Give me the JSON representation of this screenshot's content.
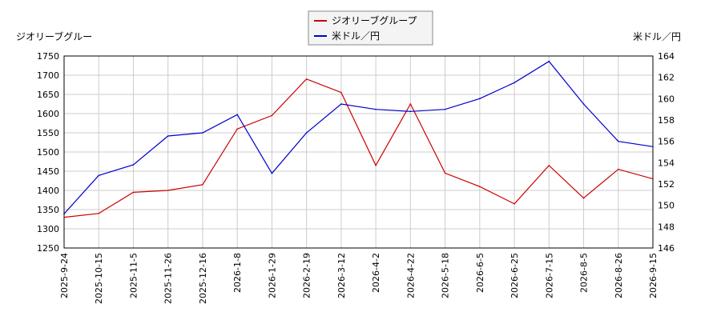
{
  "chart_data": {
    "type": "line",
    "legend": {
      "placement": "top-center",
      "entries": [
        {
          "label": "ジオリーブグループ",
          "color": "#cc0000"
        },
        {
          "label": "米ドル／円",
          "color": "#0000cc"
        }
      ]
    },
    "y_left_label": "ジオリーブグルー",
    "y_right_label": "米ドル／円",
    "y_left_lim": [
      1250,
      1750
    ],
    "y_left_ticks": [
      "1250",
      "1300",
      "1350",
      "1400",
      "1450",
      "1500",
      "1550",
      "1600",
      "1650",
      "1700",
      "1750"
    ],
    "y_right_lim": [
      146,
      164
    ],
    "y_right_ticks": [
      "146",
      "148",
      "150",
      "152",
      "154",
      "156",
      "158",
      "160",
      "162",
      "164"
    ],
    "y_tick_color": "#cc0000",
    "y_right_tick_color": "#0000cc",
    "grid": true,
    "x_ticks": [
      "2025-9-24",
      "2025-10-15",
      "2025-11-5",
      "2025-11-26",
      "2025-12-16",
      "2026-1-8",
      "2026-1-29",
      "2026-2-19",
      "2026-3-12",
      "2026-4-2",
      "2026-4-22",
      "2026-5-18",
      "2026-6-5",
      "2026-6-25",
      "2026-7-15",
      "2026-8-5",
      "2026-8-26",
      "2026-9-15"
    ],
    "series": [
      {
        "name": "ジオリーブグループ",
        "axis": "left",
        "color": "#cc0000",
        "x": [
          0,
          1,
          2,
          3,
          4,
          5,
          6,
          7,
          8,
          9,
          10,
          11,
          12,
          13,
          14,
          15,
          16,
          17
        ],
        "values": [
          1330,
          1340,
          1395,
          1400,
          1415,
          1560,
          1595,
          1690,
          1655,
          1465,
          1625,
          1445,
          1410,
          1365,
          1465,
          1380,
          1455,
          1430
        ]
      },
      {
        "name": "米ドル／円",
        "axis": "right",
        "color": "#0000cc",
        "x": [
          0,
          1,
          2,
          3,
          4,
          5,
          6,
          7,
          8,
          9,
          10,
          11,
          12,
          13,
          14,
          15,
          16,
          17
        ],
        "values": [
          149.2,
          152.8,
          153.8,
          156.5,
          156.8,
          158.5,
          153.0,
          156.8,
          159.5,
          159.0,
          158.8,
          159.0,
          160.0,
          161.5,
          163.5,
          159.5,
          156.0,
          155.5
        ]
      }
    ]
  }
}
